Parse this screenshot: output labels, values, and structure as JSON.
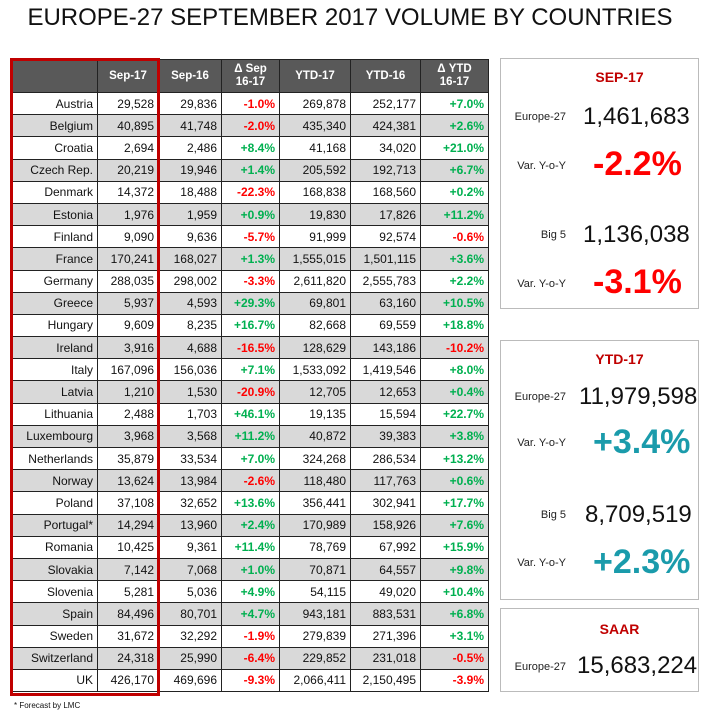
{
  "title": "EUROPE-27 SEPTEMBER 2017 VOLUME BY COUNTRIES",
  "colors": {
    "negative": "#ff0000",
    "positive": "#00b050",
    "ytd_positive": "#1a9bab",
    "accent": "#c00000",
    "header_bg": "#595959"
  },
  "table": {
    "headers": [
      "",
      "Sep-17",
      "Sep-16",
      "Δ Sep 16-17",
      "YTD-17",
      "YTD-16",
      "Δ YTD 16-17"
    ],
    "rows": [
      [
        "Austria",
        "29,528",
        "29,836",
        "-1.0%",
        "269,878",
        "252,177",
        "+7.0%"
      ],
      [
        "Belgium",
        "40,895",
        "41,748",
        "-2.0%",
        "435,340",
        "424,381",
        "+2.6%"
      ],
      [
        "Croatia",
        "2,694",
        "2,486",
        "+8.4%",
        "41,168",
        "34,020",
        "+21.0%"
      ],
      [
        "Czech Rep.",
        "20,219",
        "19,946",
        "+1.4%",
        "205,592",
        "192,713",
        "+6.7%"
      ],
      [
        "Denmark",
        "14,372",
        "18,488",
        "-22.3%",
        "168,838",
        "168,560",
        "+0.2%"
      ],
      [
        "Estonia",
        "1,976",
        "1,959",
        "+0.9%",
        "19,830",
        "17,826",
        "+11.2%"
      ],
      [
        "Finland",
        "9,090",
        "9,636",
        "-5.7%",
        "91,999",
        "92,574",
        "-0.6%"
      ],
      [
        "France",
        "170,241",
        "168,027",
        "+1.3%",
        "1,555,015",
        "1,501,115",
        "+3.6%"
      ],
      [
        "Germany",
        "288,035",
        "298,002",
        "-3.3%",
        "2,611,820",
        "2,555,783",
        "+2.2%"
      ],
      [
        "Greece",
        "5,937",
        "4,593",
        "+29.3%",
        "69,801",
        "63,160",
        "+10.5%"
      ],
      [
        "Hungary",
        "9,609",
        "8,235",
        "+16.7%",
        "82,668",
        "69,559",
        "+18.8%"
      ],
      [
        "Ireland",
        "3,916",
        "4,688",
        "-16.5%",
        "128,629",
        "143,186",
        "-10.2%"
      ],
      [
        "Italy",
        "167,096",
        "156,036",
        "+7.1%",
        "1,533,092",
        "1,419,546",
        "+8.0%"
      ],
      [
        "Latvia",
        "1,210",
        "1,530",
        "-20.9%",
        "12,705",
        "12,653",
        "+0.4%"
      ],
      [
        "Lithuania",
        "2,488",
        "1,703",
        "+46.1%",
        "19,135",
        "15,594",
        "+22.7%"
      ],
      [
        "Luxembourg",
        "3,968",
        "3,568",
        "+11.2%",
        "40,872",
        "39,383",
        "+3.8%"
      ],
      [
        "Netherlands",
        "35,879",
        "33,534",
        "+7.0%",
        "324,268",
        "286,534",
        "+13.2%"
      ],
      [
        "Norway",
        "13,624",
        "13,984",
        "-2.6%",
        "118,480",
        "117,763",
        "+0.6%"
      ],
      [
        "Poland",
        "37,108",
        "32,652",
        "+13.6%",
        "356,441",
        "302,941",
        "+17.7%"
      ],
      [
        "Portugal*",
        "14,294",
        "13,960",
        "+2.4%",
        "170,989",
        "158,926",
        "+7.6%"
      ],
      [
        "Romania",
        "10,425",
        "9,361",
        "+11.4%",
        "78,769",
        "67,992",
        "+15.9%"
      ],
      [
        "Slovakia",
        "7,142",
        "7,068",
        "+1.0%",
        "70,871",
        "64,557",
        "+9.8%"
      ],
      [
        "Slovenia",
        "5,281",
        "5,036",
        "+4.9%",
        "54,115",
        "49,020",
        "+10.4%"
      ],
      [
        "Spain",
        "84,496",
        "80,701",
        "+4.7%",
        "943,181",
        "883,531",
        "+6.8%"
      ],
      [
        "Sweden",
        "31,672",
        "32,292",
        "-1.9%",
        "279,839",
        "271,396",
        "+3.1%"
      ],
      [
        "Switzerland",
        "24,318",
        "25,990",
        "-6.4%",
        "229,852",
        "231,018",
        "-0.5%"
      ],
      [
        "UK",
        "426,170",
        "469,696",
        "-9.3%",
        "2,066,411",
        "2,150,495",
        "-3.9%"
      ]
    ]
  },
  "footnote": "* Forecast by LMC",
  "sep": {
    "title": "SEP-17",
    "eu_label": "Europe-27",
    "eu_value": "1,461,683",
    "var_label": "Var. Y-o-Y",
    "eu_var": "-2.2%",
    "big5_label": "Big 5",
    "big5_value": "1,136,038",
    "big5_var_label": "Var. Y-o-Y",
    "big5_var": "-3.1%"
  },
  "ytd": {
    "title": "YTD-17",
    "eu_label": "Europe-27",
    "eu_value": "11,979,598",
    "var_label": "Var. Y-o-Y",
    "eu_var": "+3.4%",
    "big5_label": "Big 5",
    "big5_value": "8,709,519",
    "big5_var_label": "Var. Y-o-Y",
    "big5_var": "+2.3%"
  },
  "saar": {
    "title": "SAAR",
    "eu_label": "Europe-27",
    "eu_value": "15,683,224"
  }
}
